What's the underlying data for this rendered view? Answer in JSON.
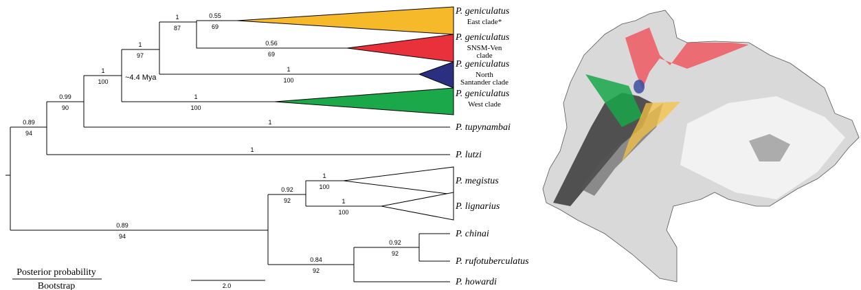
{
  "tree": {
    "nodes": [
      {
        "posterior": "0.89",
        "bootstrap": "94"
      },
      {
        "posterior": "0.99",
        "bootstrap": "90"
      },
      {
        "posterior": "1",
        "bootstrap": "100"
      },
      {
        "posterior": "1",
        "bootstrap": "97"
      },
      {
        "posterior": "1",
        "bootstrap": "87"
      },
      {
        "posterior": "0.55",
        "bootstrap": "69"
      },
      {
        "posterior": "0.56",
        "bootstrap": "69"
      },
      {
        "posterior": "1",
        "bootstrap": "100"
      },
      {
        "posterior": "1",
        "bootstrap": "100"
      },
      {
        "posterior": "1"
      },
      {
        "posterior": "1"
      },
      {
        "posterior": "0.89",
        "bootstrap": "94"
      },
      {
        "posterior": "0.92",
        "bootstrap": "92"
      },
      {
        "posterior": "1",
        "bootstrap": "100"
      },
      {
        "posterior": "1",
        "bootstrap": "100"
      },
      {
        "posterior": "0.84",
        "bootstrap": "92"
      },
      {
        "posterior": "0.92",
        "bootstrap": "92"
      }
    ],
    "taxa": [
      {
        "name": "P. geniculatus",
        "clade": [
          "East clade*"
        ]
      },
      {
        "name": "P. geniculatus",
        "clade": [
          "SNSM-Ven",
          "clade"
        ]
      },
      {
        "name": "P. geniculatus",
        "clade": [
          "North",
          "Santander clade"
        ]
      },
      {
        "name": "P. geniculatus",
        "clade": [
          "West clade"
        ]
      },
      {
        "name": "P. tupynambai"
      },
      {
        "name": "P. lutzi"
      },
      {
        "name": "P. megistus"
      },
      {
        "name": "P. lignarius"
      },
      {
        "name": "P. chinai"
      },
      {
        "name": "P. rufotuberculatus"
      },
      {
        "name": "P. howardi"
      }
    ],
    "date_label": "~4.4 Mya",
    "legend": {
      "top": "Posterior probability",
      "bottom": "Bootstrap"
    },
    "scale_bar": "2.0"
  }
}
